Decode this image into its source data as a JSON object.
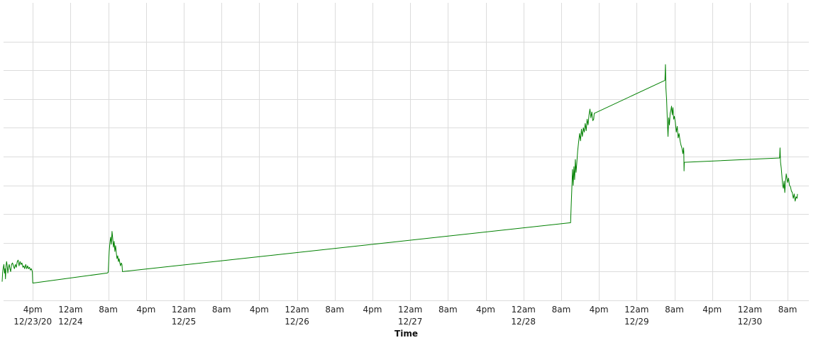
{
  "chart_data": {
    "type": "line",
    "title": "",
    "xlabel": "Time",
    "ylabel": "",
    "grid": true,
    "legend": "none",
    "x_units": "hours since 2020-12-23 12am",
    "xlim": [
      9.8,
      180.5
    ],
    "ylim": [
      0,
      100
    ],
    "y_gridlines": [
      0,
      10,
      20,
      30,
      40,
      50,
      60,
      70,
      80,
      90
    ],
    "x_ticks": [
      {
        "h": 16,
        "label": "4pm",
        "date": "12/23/20"
      },
      {
        "h": 24,
        "label": "12am",
        "date": "12/24"
      },
      {
        "h": 32,
        "label": "8am",
        "date": ""
      },
      {
        "h": 40,
        "label": "4pm",
        "date": ""
      },
      {
        "h": 48,
        "label": "12am",
        "date": "12/25"
      },
      {
        "h": 56,
        "label": "8am",
        "date": ""
      },
      {
        "h": 64,
        "label": "4pm",
        "date": ""
      },
      {
        "h": 72,
        "label": "12am",
        "date": "12/26"
      },
      {
        "h": 80,
        "label": "8am",
        "date": ""
      },
      {
        "h": 88,
        "label": "4pm",
        "date": ""
      },
      {
        "h": 96,
        "label": "12am",
        "date": "12/27"
      },
      {
        "h": 104,
        "label": "8am",
        "date": ""
      },
      {
        "h": 112,
        "label": "4pm",
        "date": ""
      },
      {
        "h": 120,
        "label": "12am",
        "date": "12/28"
      },
      {
        "h": 128,
        "label": "8am",
        "date": ""
      },
      {
        "h": 136,
        "label": "4pm",
        "date": ""
      },
      {
        "h": 144,
        "label": "12am",
        "date": "12/29"
      },
      {
        "h": 152,
        "label": "8am",
        "date": ""
      },
      {
        "h": 160,
        "label": "4pm",
        "date": ""
      },
      {
        "h": 168,
        "label": "12am",
        "date": "12/30"
      },
      {
        "h": 176,
        "label": "8am",
        "date": ""
      }
    ],
    "series": [
      {
        "color": "#008000",
        "points": [
          [
            9.5,
            6.5
          ],
          [
            9.62,
            10.0
          ],
          [
            9.75,
            11.5
          ],
          [
            9.88,
            12.5
          ],
          [
            10.0,
            9.5
          ],
          [
            10.1,
            11.0
          ],
          [
            10.2,
            7.5
          ],
          [
            10.32,
            12.0
          ],
          [
            10.45,
            13.5
          ],
          [
            10.58,
            12.0
          ],
          [
            10.7,
            9.5
          ],
          [
            10.85,
            11.5
          ],
          [
            11.0,
            12.5
          ],
          [
            11.15,
            11.0
          ],
          [
            11.3,
            10.0
          ],
          [
            11.5,
            12.5
          ],
          [
            11.7,
            13.0
          ],
          [
            11.9,
            12.0
          ],
          [
            12.1,
            11.0
          ],
          [
            12.3,
            12.5
          ],
          [
            12.5,
            11.5
          ],
          [
            12.7,
            13.5
          ],
          [
            12.9,
            14.0
          ],
          [
            13.1,
            12.0
          ],
          [
            13.3,
            13.5
          ],
          [
            13.5,
            12.5
          ],
          [
            13.7,
            13.0
          ],
          [
            13.9,
            11.5
          ],
          [
            14.1,
            12.0
          ],
          [
            14.3,
            11.0
          ],
          [
            14.5,
            12.5
          ],
          [
            14.7,
            11.0
          ],
          [
            14.9,
            12.0
          ],
          [
            15.1,
            11.0
          ],
          [
            15.3,
            11.5
          ],
          [
            15.5,
            10.5
          ],
          [
            15.7,
            11.0
          ],
          [
            15.9,
            10.0
          ],
          [
            16.0,
            6.0
          ],
          [
            31.8,
            9.5
          ],
          [
            32.0,
            9.8
          ],
          [
            32.1,
            14.0
          ],
          [
            32.2,
            17.0
          ],
          [
            32.35,
            20.0
          ],
          [
            32.5,
            22.0
          ],
          [
            32.65,
            19.5
          ],
          [
            32.8,
            24.0
          ],
          [
            32.95,
            21.5
          ],
          [
            33.1,
            18.5
          ],
          [
            33.25,
            20.5
          ],
          [
            33.4,
            17.0
          ],
          [
            33.55,
            19.0
          ],
          [
            33.7,
            16.5
          ],
          [
            33.85,
            14.5
          ],
          [
            34.0,
            15.5
          ],
          [
            34.15,
            13.5
          ],
          [
            34.3,
            14.5
          ],
          [
            34.45,
            13.0
          ],
          [
            34.6,
            12.0
          ],
          [
            34.75,
            13.0
          ],
          [
            34.9,
            12.5
          ],
          [
            35.0,
            10.0
          ],
          [
            130.0,
            27.0
          ],
          [
            130.1,
            32.0
          ],
          [
            130.25,
            38.5
          ],
          [
            130.4,
            45.5
          ],
          [
            130.55,
            40.0
          ],
          [
            130.7,
            46.5
          ],
          [
            130.85,
            42.0
          ],
          [
            131.0,
            49.0
          ],
          [
            131.15,
            44.5
          ],
          [
            131.3,
            47.5
          ],
          [
            131.5,
            52.0
          ],
          [
            131.7,
            55.0
          ],
          [
            131.9,
            58.0
          ],
          [
            132.1,
            55.5
          ],
          [
            132.3,
            59.5
          ],
          [
            132.5,
            57.0
          ],
          [
            132.7,
            60.0
          ],
          [
            132.9,
            58.5
          ],
          [
            133.1,
            61.5
          ],
          [
            133.3,
            59.0
          ],
          [
            133.5,
            63.0
          ],
          [
            133.7,
            61.0
          ],
          [
            133.9,
            64.5
          ],
          [
            134.1,
            66.5
          ],
          [
            134.3,
            63.5
          ],
          [
            134.5,
            65.5
          ],
          [
            134.7,
            62.5
          ],
          [
            134.9,
            63.0
          ],
          [
            135.0,
            65.0
          ],
          [
            150.0,
            76.5
          ],
          [
            150.1,
            82.0
          ],
          [
            150.2,
            74.0
          ],
          [
            150.35,
            70.0
          ],
          [
            150.5,
            63.0
          ],
          [
            150.65,
            57.0
          ],
          [
            150.8,
            63.5
          ],
          [
            150.95,
            61.0
          ],
          [
            151.1,
            65.0
          ],
          [
            151.25,
            66.0
          ],
          [
            151.4,
            67.5
          ],
          [
            151.55,
            64.5
          ],
          [
            151.7,
            67.0
          ],
          [
            151.85,
            63.0
          ],
          [
            152.0,
            64.0
          ],
          [
            152.2,
            62.0
          ],
          [
            152.4,
            58.5
          ],
          [
            152.6,
            60.5
          ],
          [
            152.8,
            56.5
          ],
          [
            153.0,
            58.0
          ],
          [
            153.2,
            55.5
          ],
          [
            153.4,
            54.0
          ],
          [
            153.6,
            53.0
          ],
          [
            153.8,
            51.0
          ],
          [
            153.95,
            53.0
          ],
          [
            154.0,
            51.5
          ],
          [
            154.05,
            45.0
          ],
          [
            154.1,
            48.0
          ],
          [
            174.3,
            49.5
          ],
          [
            174.4,
            53.0
          ],
          [
            174.5,
            48.0
          ],
          [
            174.65,
            46.0
          ],
          [
            174.8,
            43.0
          ],
          [
            174.95,
            40.0
          ],
          [
            175.1,
            39.0
          ],
          [
            175.25,
            41.5
          ],
          [
            175.4,
            37.5
          ],
          [
            175.55,
            41.0
          ],
          [
            175.7,
            44.0
          ],
          [
            175.85,
            42.5
          ],
          [
            176.0,
            41.0
          ],
          [
            176.2,
            42.5
          ],
          [
            176.4,
            40.0
          ],
          [
            176.6,
            39.5
          ],
          [
            176.8,
            38.0
          ],
          [
            177.0,
            37.5
          ],
          [
            177.2,
            35.5
          ],
          [
            177.4,
            37.0
          ],
          [
            177.6,
            34.5
          ],
          [
            177.8,
            36.0
          ],
          [
            178.0,
            35.5
          ],
          [
            178.1,
            37.0
          ]
        ]
      }
    ]
  }
}
